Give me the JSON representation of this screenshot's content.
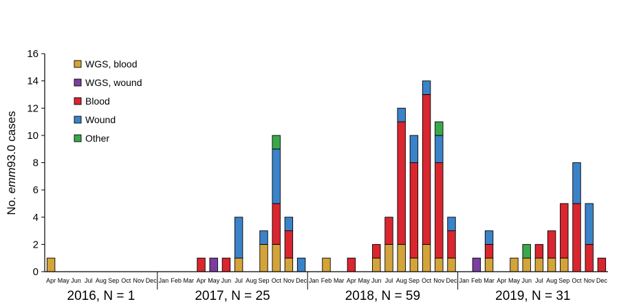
{
  "chart_data": {
    "type": "bar",
    "stacked": true,
    "ylabel_prefix": "No. ",
    "ylabel_italic": "emm",
    "ylabel_suffix": "93.0 cases",
    "ylim": [
      0,
      16
    ],
    "yticks": [
      0,
      2,
      4,
      6,
      8,
      10,
      12,
      14,
      16
    ],
    "legend_position": "top-left",
    "categories": [
      "Apr",
      "May",
      "Jun",
      "Jul",
      "Aug",
      "Sep",
      "Oct",
      "Nov",
      "Dec",
      "Jan",
      "Feb",
      "Mar",
      "Apr",
      "May",
      "Jun",
      "Jul",
      "Aug",
      "Sep",
      "Oct",
      "Nov",
      "Dec",
      "Jan",
      "Feb",
      "Mar",
      "Apr",
      "May",
      "Jun",
      "Jul",
      "Aug",
      "Sep",
      "Oct",
      "Nov",
      "Dec",
      "Jan",
      "Feb",
      "Mar",
      "Apr",
      "May",
      "Jun",
      "Jul",
      "Aug",
      "Sep",
      "Oct",
      "Nov",
      "Dec"
    ],
    "groups": [
      {
        "label": "2016, N = 1",
        "start": 0,
        "count": 9
      },
      {
        "label": "2017, N = 25",
        "start": 9,
        "count": 12
      },
      {
        "label": "2018, N = 59",
        "start": 21,
        "count": 12
      },
      {
        "label": "2019, N = 31",
        "start": 33,
        "count": 12
      }
    ],
    "series": [
      {
        "name": "WGS, blood",
        "color": "#d4a43a",
        "values": [
          1,
          0,
          0,
          0,
          0,
          0,
          0,
          0,
          0,
          0,
          0,
          0,
          0,
          0,
          0,
          1,
          0,
          2,
          2,
          1,
          0,
          0,
          1,
          0,
          0,
          0,
          1,
          2,
          2,
          1,
          2,
          1,
          1,
          0,
          0,
          1,
          0,
          1,
          1,
          1,
          1,
          1,
          0,
          0,
          0
        ]
      },
      {
        "name": "WGS, wound",
        "color": "#7b3fa0",
        "values": [
          0,
          0,
          0,
          0,
          0,
          0,
          0,
          0,
          0,
          0,
          0,
          0,
          0,
          1,
          0,
          0,
          0,
          0,
          0,
          0,
          0,
          0,
          0,
          0,
          0,
          0,
          0,
          0,
          0,
          0,
          0,
          0,
          0,
          0,
          1,
          0,
          0,
          0,
          0,
          0,
          0,
          0,
          0,
          0,
          0
        ]
      },
      {
        "name": "Blood",
        "color": "#d9262f",
        "values": [
          0,
          0,
          0,
          0,
          0,
          0,
          0,
          0,
          0,
          0,
          0,
          0,
          1,
          0,
          1,
          0,
          0,
          0,
          3,
          2,
          0,
          0,
          0,
          0,
          1,
          0,
          1,
          2,
          9,
          7,
          11,
          7,
          2,
          0,
          0,
          1,
          0,
          0,
          0,
          1,
          2,
          4,
          5,
          2,
          1
        ]
      },
      {
        "name": "Wound",
        "color": "#3a83c9",
        "values": [
          0,
          0,
          0,
          0,
          0,
          0,
          0,
          0,
          0,
          0,
          0,
          0,
          0,
          0,
          0,
          3,
          0,
          1,
          4,
          1,
          1,
          0,
          0,
          0,
          0,
          0,
          0,
          0,
          1,
          2,
          1,
          2,
          1,
          0,
          0,
          1,
          0,
          0,
          0,
          0,
          0,
          0,
          3,
          3,
          0
        ]
      },
      {
        "name": "Other",
        "color": "#3aa84a",
        "values": [
          0,
          0,
          0,
          0,
          0,
          0,
          0,
          0,
          0,
          0,
          0,
          0,
          0,
          0,
          0,
          0,
          0,
          0,
          1,
          0,
          0,
          0,
          0,
          0,
          0,
          0,
          0,
          0,
          0,
          0,
          0,
          1,
          0,
          0,
          0,
          0,
          0,
          0,
          1,
          0,
          0,
          0,
          0,
          0,
          0
        ]
      }
    ]
  }
}
